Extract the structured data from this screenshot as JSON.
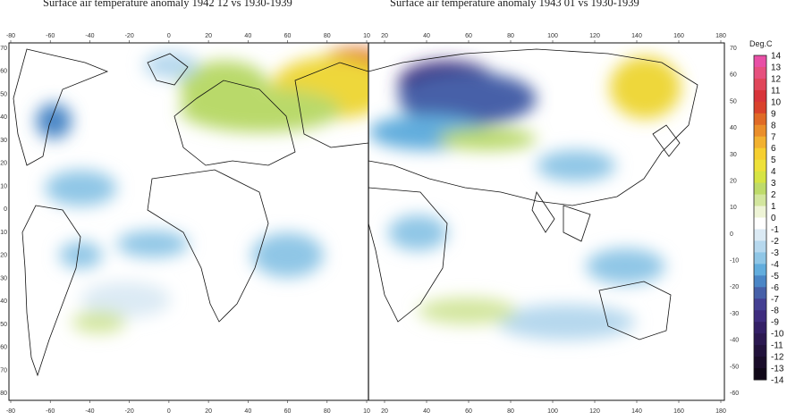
{
  "panels": [
    {
      "title": "Surface air temperature anomaly 1942 12 vs 1930-1939",
      "top_ticks": [
        "-80",
        "-60",
        "-40",
        "-20",
        "0",
        "20",
        "40",
        "60",
        "80",
        "10"
      ],
      "bottom_ticks": [
        "-80",
        "-60",
        "-40",
        "-20",
        "0",
        "20",
        "40",
        "60",
        "80",
        "10"
      ],
      "left_ticks": [
        "70",
        "60",
        "50",
        "40",
        "30",
        "20",
        "10",
        "0",
        "-10",
        "-20",
        "-30",
        "-40",
        "-50",
        "-60",
        "-70",
        "-80"
      ]
    },
    {
      "title": "Surface air temperature anomaly 1943 01 vs 1930-1939",
      "top_ticks": [
        "20",
        "40",
        "60",
        "80",
        "100",
        "120",
        "140",
        "160",
        "180"
      ],
      "bottom_ticks": [
        "20",
        "40",
        "60",
        "80",
        "100",
        "120",
        "140",
        "160",
        "180"
      ],
      "right_ticks": [
        "70",
        "60",
        "50",
        "40",
        "30",
        "20",
        "10",
        "0",
        "-10",
        "-20",
        "-30",
        "-40",
        "-50",
        "-60"
      ]
    }
  ],
  "colorbar": {
    "unit": "Deg.C",
    "labels": [
      "14",
      "13",
      "12",
      "11",
      "10",
      "9",
      "8",
      "7",
      "6",
      "5",
      "4",
      "3",
      "2",
      "1",
      "0",
      "-1",
      "-2",
      "-3",
      "-4",
      "-5",
      "-6",
      "-7",
      "-8",
      "-9",
      "-10",
      "-11",
      "-12",
      "-13",
      "-14"
    ],
    "colors": [
      "#e84fa6",
      "#e6507e",
      "#e0465a",
      "#d8343a",
      "#d9422c",
      "#e06a26",
      "#ea8e2a",
      "#f2b130",
      "#f6cf30",
      "#eee13a",
      "#d6e444",
      "#bedb6a",
      "#d3e69e",
      "#eef4d6",
      "#ffffff",
      "#dbeaf4",
      "#b6d8ee",
      "#8fc6e6",
      "#62addd",
      "#4a86c6",
      "#4660a8",
      "#443f92",
      "#3e2c7e",
      "#331f66",
      "#2b1850",
      "#22123c",
      "#1a0d2a",
      "#100818"
    ]
  },
  "anomaly_blobs": [
    {
      "panel": "left",
      "color": "#e0702a",
      "lon": 92,
      "lat": 64,
      "rx": 20,
      "ry": 9
    },
    {
      "panel": "left",
      "color": "#eed73a",
      "lon": 80,
      "lat": 55,
      "rx": 34,
      "ry": 14
    },
    {
      "panel": "left",
      "color": "#b9d96a",
      "lon": 40,
      "lat": 45,
      "rx": 45,
      "ry": 10
    },
    {
      "panel": "left",
      "color": "#b9d96a",
      "lon": 20,
      "lat": 55,
      "rx": 25,
      "ry": 12
    },
    {
      "panel": "left",
      "color": "#4a86c6",
      "lon": -75,
      "lat": 40,
      "rx": 10,
      "ry": 8
    },
    {
      "panel": "left",
      "color": "#8fc6e6",
      "lon": -60,
      "lat": 10,
      "rx": 20,
      "ry": 8
    },
    {
      "panel": "left",
      "color": "#8fc6e6",
      "lon": -20,
      "lat": -15,
      "rx": 20,
      "ry": 6
    },
    {
      "panel": "left",
      "color": "#8fc6e6",
      "lon": 55,
      "lat": -20,
      "rx": 20,
      "ry": 10
    },
    {
      "panel": "left",
      "color": "#8fc6e6",
      "lon": -60,
      "lat": -20,
      "rx": 12,
      "ry": 6
    },
    {
      "panel": "left",
      "color": "#dbeaf4",
      "lon": -35,
      "lat": -40,
      "rx": 25,
      "ry": 8
    },
    {
      "panel": "left",
      "color": "#d3e69e",
      "lon": -50,
      "lat": -50,
      "rx": 15,
      "ry": 5
    },
    {
      "panel": "left",
      "color": "#b6d8ee",
      "lon": -10,
      "lat": 65,
      "rx": 15,
      "ry": 6
    },
    {
      "panel": "right",
      "color": "#3e2c7e",
      "lon": 50,
      "lat": 57,
      "rx": 25,
      "ry": 10
    },
    {
      "panel": "right",
      "color": "#4660a8",
      "lon": 60,
      "lat": 50,
      "rx": 35,
      "ry": 12
    },
    {
      "panel": "right",
      "color": "#62addd",
      "lon": 40,
      "lat": 35,
      "rx": 30,
      "ry": 8
    },
    {
      "panel": "right",
      "color": "#d9422c",
      "lon": 150,
      "lat": 52,
      "rx": 10,
      "ry": 8
    },
    {
      "panel": "right",
      "color": "#eed73a",
      "lon": 150,
      "lat": 55,
      "rx": 18,
      "ry": 14
    },
    {
      "panel": "right",
      "color": "#b9d96a",
      "lon": 70,
      "lat": 32,
      "rx": 25,
      "ry": 5
    },
    {
      "panel": "right",
      "color": "#8fc6e6",
      "lon": 115,
      "lat": 20,
      "rx": 20,
      "ry": 7
    },
    {
      "panel": "right",
      "color": "#8fc6e6",
      "lon": 35,
      "lat": -10,
      "rx": 15,
      "ry": 8
    },
    {
      "panel": "right",
      "color": "#8fc6e6",
      "lon": 140,
      "lat": -25,
      "rx": 20,
      "ry": 8
    },
    {
      "panel": "right",
      "color": "#b6d8ee",
      "lon": 110,
      "lat": -50,
      "rx": 35,
      "ry": 8
    },
    {
      "panel": "right",
      "color": "#d3e69e",
      "lon": 60,
      "lat": -45,
      "rx": 25,
      "ry": 6
    }
  ]
}
